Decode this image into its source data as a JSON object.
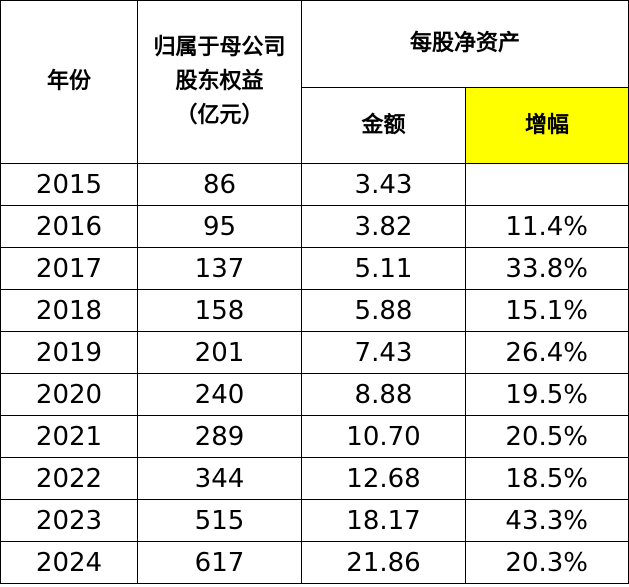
{
  "header": {
    "year": "年份",
    "equity": [
      "归属于母公司",
      "股东权益",
      "（亿元）"
    ],
    "bvps": "每股净资产",
    "amount": "金额",
    "growth": "增幅"
  },
  "table": {
    "rows": [
      [
        "2015",
        "86",
        "3.43",
        null
      ],
      [
        "2016",
        "95",
        "3.82",
        "11.4%"
      ],
      [
        "2017",
        "137",
        "5.11",
        "33.8%"
      ],
      [
        "2018",
        "158",
        "5.88",
        "15.1%"
      ],
      [
        "2019",
        "201",
        "7.43",
        "26.4%"
      ],
      [
        "2020",
        "240",
        "8.88",
        "19.5%"
      ],
      [
        "2021",
        "289",
        "10.70",
        "20.5%"
      ],
      [
        "2022",
        "344",
        "12.68",
        "18.5%"
      ],
      [
        "2023",
        "515",
        "18.17",
        "43.3%"
      ],
      [
        "2024",
        "617",
        "21.86",
        "20.3%"
      ]
    ]
  }
}
